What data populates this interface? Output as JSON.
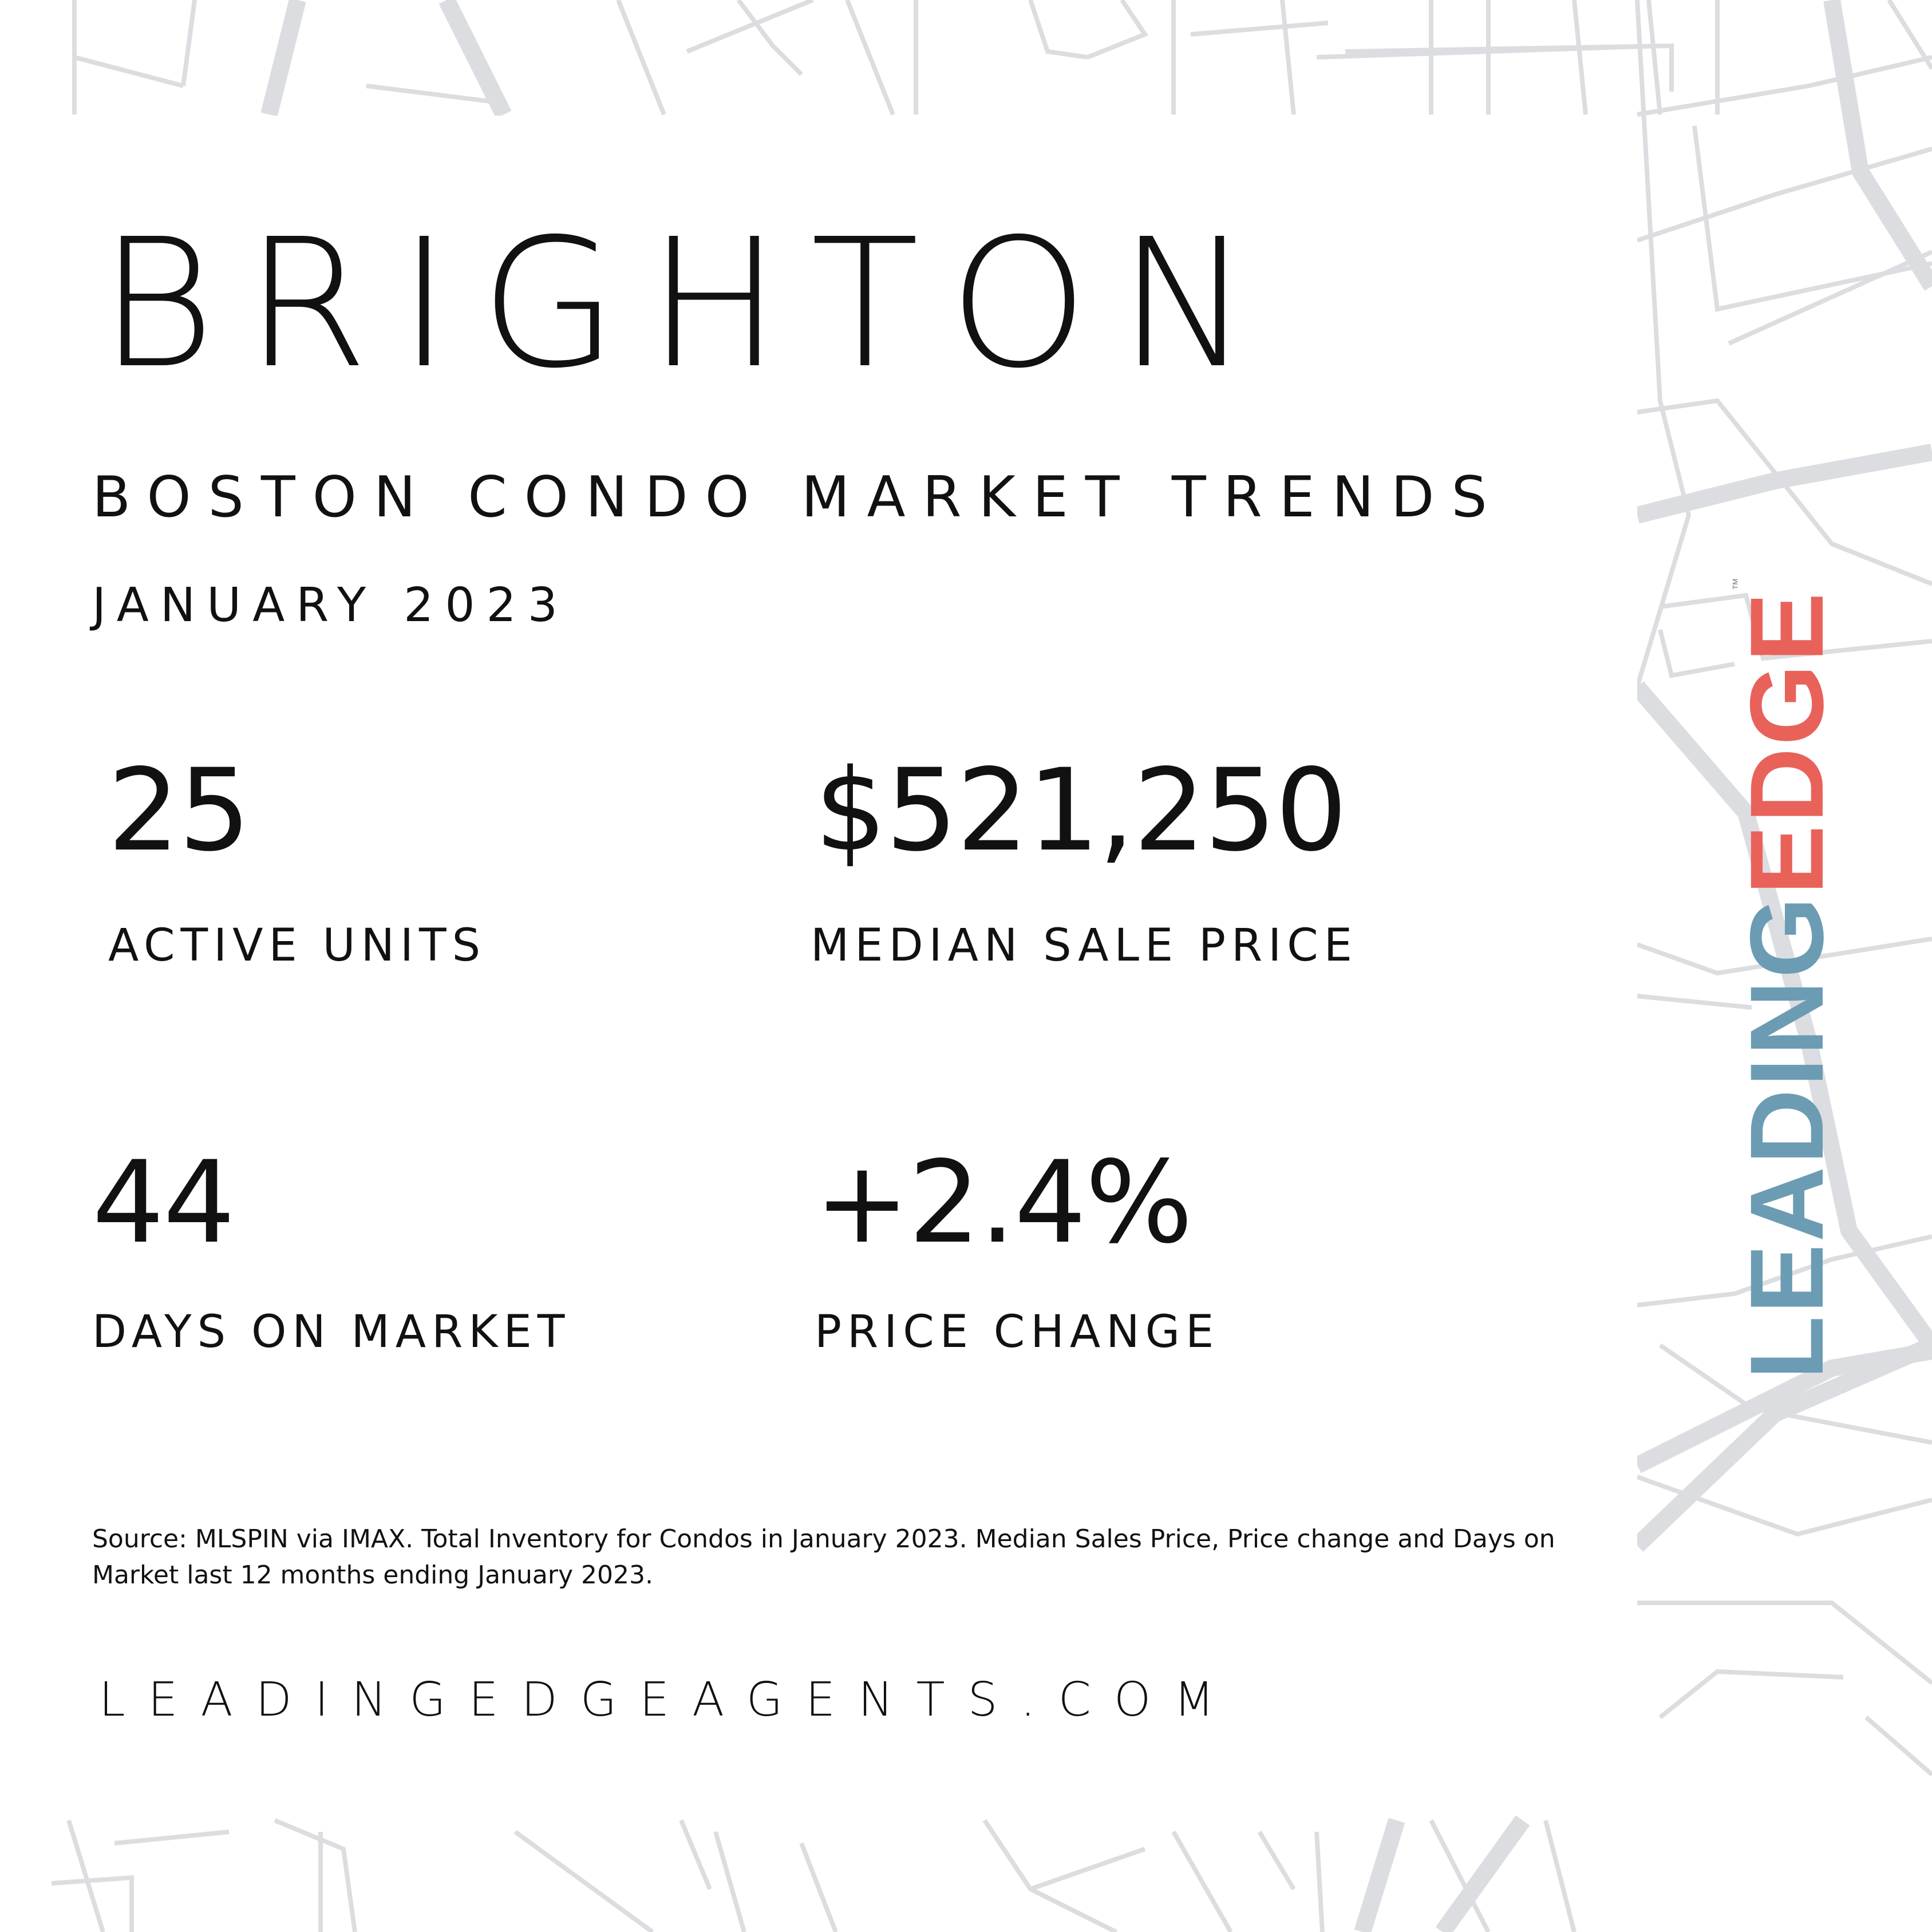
{
  "title": "BRIGHTON",
  "subtitle": "BOSTON CONDO MARKET TRENDS",
  "date": "JANUARY 2023",
  "stats": {
    "active_units": {
      "value": "25",
      "label": "ACTIVE UNITS"
    },
    "median_sale_price": {
      "value": "$521,250",
      "label": "MEDIAN SALE PRICE"
    },
    "days_on_market": {
      "value": "44",
      "label": "DAYS ON MARKET"
    },
    "price_change": {
      "value": "+2.4%",
      "label": "PRICE CHANGE"
    }
  },
  "source": "Source: MLSPIN via IMAX. Total Inventory for Condos in January 2023. Median Sales Price, Price change and Days on Market last 12 months ending January 2023.",
  "website": "LEADINGEDGEAGENTS.COM",
  "logo": {
    "part1": "LEADING",
    "part2": "EDGE",
    "trademark": "™"
  },
  "colors": {
    "logo_blue": "#6b9cb3",
    "logo_red": "#e8625a",
    "map_lines": "#dcdde0"
  }
}
